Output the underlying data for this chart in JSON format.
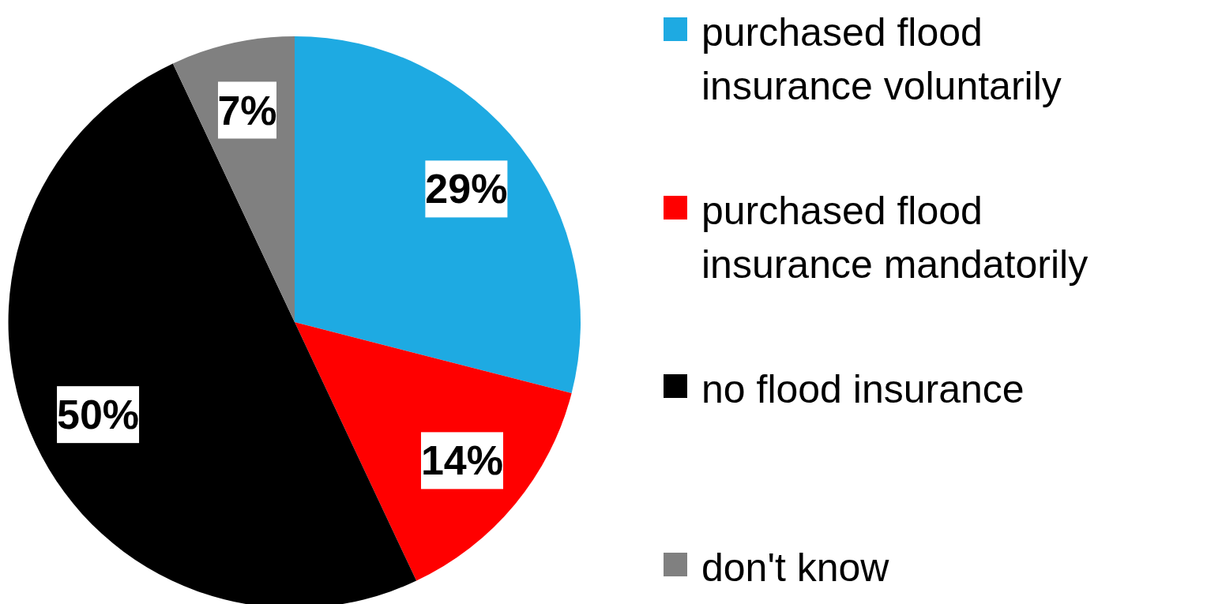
{
  "chart_data": {
    "type": "pie",
    "categories": [
      "purchased flood insurance voluntarily",
      "purchased flood insurance mandatorily",
      "no flood insurance",
      "don't know"
    ],
    "values": [
      29,
      14,
      50,
      7
    ],
    "colors": [
      "#1eaae2",
      "#ff0000",
      "#000000",
      "#808080"
    ],
    "value_labels": [
      "29%",
      "14%",
      "50%",
      "7%"
    ],
    "legend": "right"
  }
}
